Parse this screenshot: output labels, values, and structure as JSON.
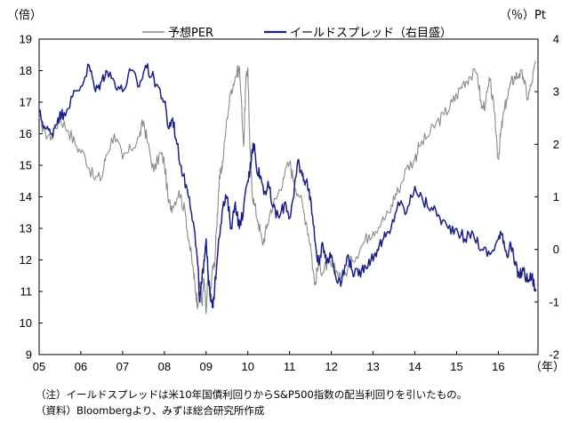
{
  "chart_data": {
    "type": "line",
    "left_unit": "（倍）",
    "right_unit": "（％）Pt",
    "x_unit": "（年）",
    "xlim": [
      2005,
      2016.95
    ],
    "ylim_left": [
      9,
      19
    ],
    "ylim_right": [
      -2,
      4
    ],
    "x_ticks": [
      {
        "value": 2005,
        "label": "05"
      },
      {
        "value": 2006,
        "label": "06"
      },
      {
        "value": 2007,
        "label": "07"
      },
      {
        "value": 2008,
        "label": "08"
      },
      {
        "value": 2009,
        "label": "09"
      },
      {
        "value": 2010,
        "label": "10"
      },
      {
        "value": 2011,
        "label": "11"
      },
      {
        "value": 2012,
        "label": "12"
      },
      {
        "value": 2013,
        "label": "13"
      },
      {
        "value": 2014,
        "label": "14"
      },
      {
        "value": 2015,
        "label": "15"
      },
      {
        "value": 2016,
        "label": "16"
      }
    ],
    "y_ticks_left": [
      "9",
      "10",
      "11",
      "12",
      "13",
      "14",
      "15",
      "16",
      "17",
      "18",
      "19"
    ],
    "y_ticks_right": [
      "-2",
      "-1",
      "0",
      "1",
      "2",
      "3",
      "4"
    ],
    "grid": false,
    "legend_position": "top",
    "series": [
      {
        "name": "予想PER",
        "axis": "left",
        "color": "#8a8a8a",
        "x": [
          2005.0,
          2005.15,
          2005.3,
          2005.5,
          2005.7,
          2005.9,
          2006.1,
          2006.3,
          2006.5,
          2006.6,
          2006.8,
          2007.0,
          2007.2,
          2007.4,
          2007.5,
          2007.6,
          2007.75,
          2007.9,
          2008.0,
          2008.1,
          2008.2,
          2008.35,
          2008.5,
          2008.6,
          2008.7,
          2008.75,
          2008.8,
          2008.85,
          2008.9,
          2008.95,
          2009.0,
          2009.05,
          2009.1,
          2009.15,
          2009.2,
          2009.25,
          2009.3,
          2009.35,
          2009.4,
          2009.5,
          2009.6,
          2009.7,
          2009.8,
          2009.9,
          2009.95,
          2010.0,
          2010.05,
          2010.1,
          2010.15,
          2010.25,
          2010.35,
          2010.45,
          2010.55,
          2010.7,
          2010.85,
          2011.0,
          2011.1,
          2011.25,
          2011.4,
          2011.5,
          2011.6,
          2011.7,
          2011.8,
          2011.9,
          2012.0,
          2012.15,
          2012.3,
          2012.5,
          2012.7,
          2012.9,
          2013.0,
          2013.2,
          2013.4,
          2013.5,
          2013.6,
          2013.8,
          2014.0,
          2014.1,
          2014.3,
          2014.5,
          2014.7,
          2014.9,
          2015.0,
          2015.15,
          2015.3,
          2015.5,
          2015.6,
          2015.7,
          2015.8,
          2015.9,
          2016.0,
          2016.05,
          2016.1,
          2016.2,
          2016.3,
          2016.4,
          2016.5,
          2016.6,
          2016.7,
          2016.8,
          2016.9
        ],
        "y": [
          16.5,
          16.0,
          15.9,
          16.5,
          16.1,
          15.6,
          15.3,
          14.6,
          14.6,
          15.3,
          16.0,
          15.2,
          15.5,
          15.9,
          16.4,
          15.7,
          14.8,
          15.4,
          15.1,
          13.8,
          13.7,
          14.2,
          13.5,
          12.5,
          11.6,
          11.0,
          10.6,
          11.3,
          10.6,
          11.4,
          10.3,
          11.5,
          10.8,
          11.7,
          11.8,
          13.0,
          14.2,
          14.8,
          15.1,
          16.5,
          17.4,
          17.8,
          18.1,
          15.6,
          17.6,
          18.1,
          15.5,
          14.2,
          13.8,
          13.2,
          12.5,
          13.0,
          13.6,
          14.0,
          14.6,
          15.1,
          14.5,
          14.0,
          13.2,
          12.5,
          11.2,
          11.9,
          11.6,
          11.9,
          11.8,
          11.6,
          11.5,
          12.0,
          12.4,
          12.8,
          12.9,
          13.2,
          13.5,
          14.0,
          14.2,
          14.9,
          15.2,
          15.6,
          15.9,
          16.3,
          16.6,
          17.0,
          17.2,
          17.6,
          17.8,
          17.9,
          16.8,
          17.0,
          17.7,
          16.7,
          15.2,
          15.9,
          16.4,
          17.1,
          17.6,
          17.8,
          17.9,
          17.8,
          17.1,
          17.6,
          18.3
        ]
      },
      {
        "name": "イールドスプレッド（右目盛）",
        "axis": "right",
        "color": "#1a1f8c",
        "x": [
          2005.0,
          2005.15,
          2005.3,
          2005.45,
          2005.6,
          2005.8,
          2006.0,
          2006.2,
          2006.35,
          2006.5,
          2006.6,
          2006.8,
          2007.0,
          2007.2,
          2007.4,
          2007.55,
          2007.7,
          2007.85,
          2008.0,
          2008.1,
          2008.2,
          2008.3,
          2008.45,
          2008.6,
          2008.7,
          2008.8,
          2008.85,
          2008.9,
          2008.95,
          2009.0,
          2009.05,
          2009.1,
          2009.15,
          2009.2,
          2009.3,
          2009.4,
          2009.5,
          2009.6,
          2009.7,
          2009.8,
          2009.9,
          2010.0,
          2010.05,
          2010.1,
          2010.15,
          2010.2,
          2010.3,
          2010.4,
          2010.5,
          2010.6,
          2010.75,
          2010.9,
          2011.0,
          2011.1,
          2011.2,
          2011.3,
          2011.4,
          2011.5,
          2011.6,
          2011.7,
          2011.8,
          2011.9,
          2012.0,
          2012.1,
          2012.25,
          2012.4,
          2012.5,
          2012.65,
          2012.8,
          2012.95,
          2013.1,
          2013.25,
          2013.4,
          2013.6,
          2013.8,
          2014.0,
          2014.2,
          2014.4,
          2014.6,
          2014.8,
          2015.0,
          2015.2,
          2015.4,
          2015.6,
          2015.8,
          2016.0,
          2016.1,
          2016.2,
          2016.3,
          2016.4,
          2016.5,
          2016.6,
          2016.7,
          2016.8,
          2016.9
        ],
        "y": [
          2.6,
          2.3,
          2.2,
          2.5,
          2.6,
          2.9,
          3.1,
          3.5,
          3.0,
          3.2,
          3.4,
          3.2,
          3.0,
          3.4,
          3.1,
          3.5,
          3.3,
          3.1,
          2.8,
          2.3,
          2.5,
          2.0,
          1.4,
          1.0,
          0.5,
          -0.3,
          -1.0,
          -0.6,
          -0.2,
          0.2,
          -0.5,
          -0.9,
          -1.1,
          -0.8,
          0.2,
          0.8,
          1.0,
          0.4,
          0.9,
          0.4,
          0.8,
          1.3,
          1.5,
          1.9,
          2.0,
          1.6,
          1.4,
          1.1,
          1.2,
          0.8,
          0.6,
          0.9,
          0.6,
          1.0,
          1.7,
          1.4,
          1.3,
          1.0,
          0.2,
          -0.3,
          0.1,
          -0.2,
          -0.1,
          -0.5,
          -0.6,
          -0.1,
          -0.4,
          -0.5,
          -0.3,
          -0.2,
          0.0,
          0.2,
          0.3,
          0.9,
          0.7,
          1.2,
          0.9,
          0.8,
          0.6,
          0.4,
          0.4,
          0.2,
          0.3,
          0.0,
          -0.1,
          0.2,
          0.3,
          -0.1,
          0.1,
          -0.3,
          -0.5,
          -0.4,
          -0.6,
          -0.5,
          -0.8
        ]
      }
    ]
  },
  "notes": {
    "note": "（注）イールドスプレッドは米10年国債利回りからS&P500指数の配当利回りを引いたもの。",
    "source": "（資料）Bloombergより、みずほ総合研究所作成"
  }
}
